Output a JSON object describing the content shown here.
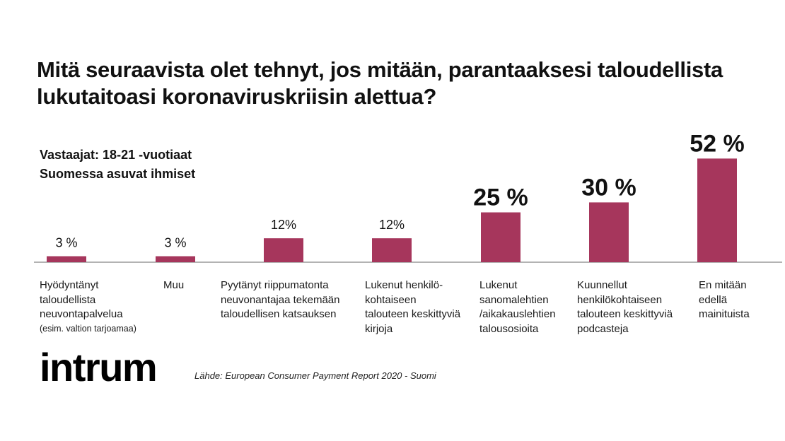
{
  "title": "Mitä seuraavista olet tehnyt, jos mitään, parantaaksesi taloudellista lukutaitoasi koronaviruskriisin alettua?",
  "respondents": {
    "line1": "Vastaajat: 18-21 -vuotiaat",
    "line2": "Suomessa asuvat ihmiset"
  },
  "chart_data": {
    "type": "bar",
    "categories": [
      "Hyödyntänyt taloudellista neuvontapalvelua (esim. valtion tarjoamaa)",
      "Muu",
      "Pyytänyt riippumatonta neuvonantajaa tekemään taloudellisen katsauksen",
      "Lukenut henkilökohtaiseen talouteen keskittyviä kirjoja",
      "Lukenut sanomalehtien /aikakauslehtien talousosioita",
      "Kuunnellut henkilökohtaiseen talouteen keskittyviä podcasteja",
      "En mitään edellä mainituista"
    ],
    "values": [
      3,
      3,
      12,
      12,
      25,
      30,
      52
    ],
    "value_labels": [
      "3 %",
      "3 %",
      "12%",
      "12%",
      "25 %",
      "30 %",
      "52 %"
    ],
    "bar_color": "#a6365c",
    "grid": false,
    "legend": "none"
  },
  "labels": {
    "c1": {
      "lines": [
        "Hyödyntänyt",
        "taloudellista",
        "neuvontapalvelua"
      ],
      "note": "(esim. valtion tarjoamaa)"
    },
    "c2": {
      "lines": [
        "Muu"
      ]
    },
    "c3": {
      "lines": [
        "Pyytänyt riippumatonta",
        "neuvonantajaa tekemään",
        "taloudellisen katsauksen"
      ]
    },
    "c4": {
      "lines": [
        "Lukenut henkilö-",
        "kohtaiseen",
        "talouteen keskittyviä",
        "kirjoja"
      ]
    },
    "c5": {
      "lines": [
        "Lukenut",
        "sanomalehtien",
        "/aikakauslehtien",
        "talousosioita"
      ]
    },
    "c6": {
      "lines": [
        "Kuunnellut",
        "henkilökohtaiseen",
        "talouteen keskittyviä",
        "podcasteja"
      ]
    },
    "c7": {
      "lines": [
        "En mitään",
        "edellä",
        "mainituista"
      ]
    }
  },
  "logo": "intrum",
  "source": "Lähde: European Consumer Payment Report 2020 - Suomi"
}
